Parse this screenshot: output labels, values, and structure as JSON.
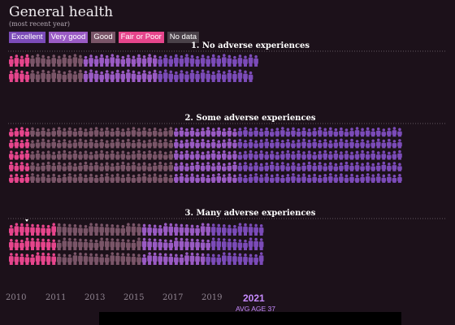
{
  "header": {
    "title": "General health",
    "subtitle": "(most recent year)"
  },
  "legend": [
    {
      "label": "Excellent",
      "color": "#7b4bb8"
    },
    {
      "label": "Very good",
      "color": "#9a5bc4"
    },
    {
      "label": "Good",
      "color": "#7a5568"
    },
    {
      "label": "Fair or Poor",
      "color": "#e6458c"
    },
    {
      "label": "No data",
      "color": "#4a4149"
    }
  ],
  "chart_data": {
    "type": "pictogram",
    "groups": [
      {
        "name": "1. No adverse experiences",
        "counts": {
          "Fair or Poor": 8,
          "Good": 20,
          "Very good": 28,
          "Excellent": 37
        }
      },
      {
        "name": "2. Some adverse experiences",
        "counts": {
          "Fair or Poor": 20,
          "Good": 135,
          "Very good": 60,
          "Excellent": 155
        }
      },
      {
        "name": "3. Many adverse experiences",
        "counts": {
          "Fair or Poor": 27,
          "Good": 48,
          "Very good": 38,
          "Excellent": 31
        }
      }
    ]
  },
  "timeline": {
    "years": [
      "2010",
      "2011",
      "2013",
      "2015",
      "2017",
      "2019"
    ],
    "current_year": "2021",
    "avg_age": "AVG AGE 37"
  }
}
